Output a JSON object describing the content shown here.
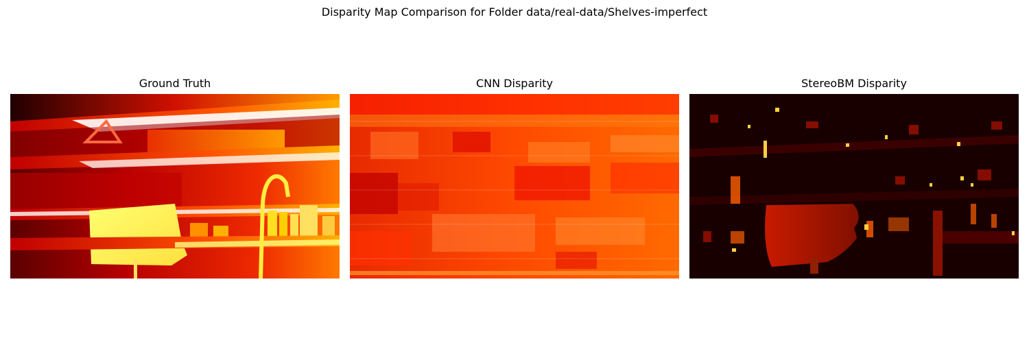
{
  "figure": {
    "suptitle": "Disparity Map Comparison for Folder data/real-data/Shelves-imperfect",
    "colormap": "hot",
    "panels": [
      {
        "title": "Ground Truth"
      },
      {
        "title": "CNN Disparity"
      },
      {
        "title": "StereoBM Disparity"
      }
    ]
  }
}
